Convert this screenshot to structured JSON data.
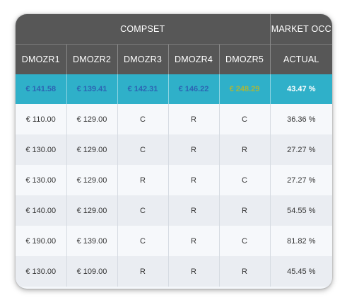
{
  "header": {
    "group_compset": "COMPSET",
    "group_market": "MARKET OCC",
    "columns": [
      "DMOZR1",
      "DMOZR2",
      "DMOZR3",
      "DMOZR4",
      "DMOZR5",
      "ACTUAL"
    ]
  },
  "summary": {
    "cells": [
      "€ 141.58",
      "€ 139.41",
      "€ 142.31",
      "€ 146.22",
      "€ 248.29",
      "43.47 %"
    ]
  },
  "rows": [
    {
      "cells": [
        "€ 110.00",
        "€ 129.00",
        "C",
        "R",
        "C",
        "36.36 %"
      ]
    },
    {
      "cells": [
        "€ 130.00",
        "€ 129.00",
        "C",
        "R",
        "R",
        "27.27 %"
      ]
    },
    {
      "cells": [
        "€ 130.00",
        "€ 129.00",
        "R",
        "R",
        "C",
        "27.27 %"
      ]
    },
    {
      "cells": [
        "€ 140.00",
        "€ 129.00",
        "C",
        "R",
        "R",
        "54.55 %"
      ]
    },
    {
      "cells": [
        "€ 190.00",
        "€ 139.00",
        "C",
        "R",
        "C",
        "81.82 %"
      ]
    },
    {
      "cells": [
        "€ 130.00",
        "€ 109.00",
        "R",
        "R",
        "R",
        "45.45 %"
      ]
    }
  ],
  "colors": {
    "header_bg": "#575757",
    "summary_bg": "#2fb0c9",
    "price_blue": "#2c64b3",
    "price_green": "#a9b63a",
    "price_red": "#c0141e",
    "status_c": "#d9313a",
    "status_r": "#3a8cc6"
  }
}
